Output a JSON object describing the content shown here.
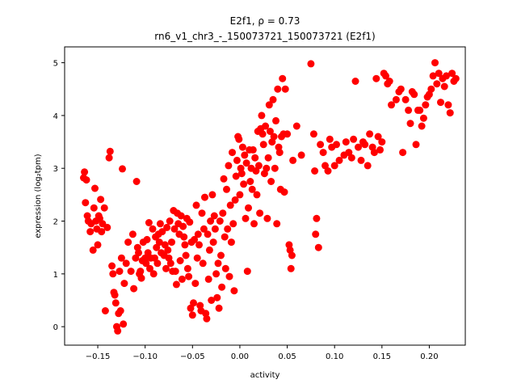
{
  "chart_data": {
    "type": "scatter",
    "title_line1": "E2f1, ρ = 0.73",
    "title_line2": "rn6_v1_chr3_-_150073721_150073721 (E2f1)",
    "xlabel": "activity",
    "ylabel": "expression (log₂tpm)",
    "xlim": [
      -0.185,
      0.238
    ],
    "ylim": [
      -0.35,
      5.3
    ],
    "x_ticks": [
      -0.15,
      -0.1,
      -0.05,
      0.0,
      0.05,
      0.1,
      0.15,
      0.2
    ],
    "x_tick_labels": [
      "−0.15",
      "−0.10",
      "−0.05",
      "0.00",
      "0.05",
      "0.10",
      "0.15",
      "0.20"
    ],
    "y_ticks": [
      0,
      1,
      2,
      3,
      4,
      5
    ],
    "y_tick_labels": [
      "0",
      "1",
      "2",
      "3",
      "4",
      "5"
    ],
    "grid": false,
    "marker_color": "#ff0000",
    "points": [
      [
        -0.165,
        2.82
      ],
      [
        -0.164,
        2.93
      ],
      [
        -0.163,
        2.35
      ],
      [
        -0.162,
        2.78
      ],
      [
        -0.161,
        2.1
      ],
      [
        -0.16,
        2.0
      ],
      [
        -0.158,
        1.8
      ],
      [
        -0.157,
        1.95
      ],
      [
        -0.155,
        1.45
      ],
      [
        -0.154,
        2.25
      ],
      [
        -0.153,
        2.62
      ],
      [
        -0.152,
        2.0
      ],
      [
        -0.151,
        1.85
      ],
      [
        -0.15,
        1.55
      ],
      [
        -0.149,
        2.1
      ],
      [
        -0.148,
        2.05
      ],
      [
        -0.147,
        2.41
      ],
      [
        -0.146,
        1.8
      ],
      [
        -0.145,
        1.95
      ],
      [
        -0.143,
        2.25
      ],
      [
        -0.142,
        0.3
      ],
      [
        -0.14,
        1.88
      ],
      [
        -0.138,
        3.2
      ],
      [
        -0.137,
        3.32
      ],
      [
        -0.135,
        1.15
      ],
      [
        -0.134,
        1.0
      ],
      [
        -0.133,
        0.65
      ],
      [
        -0.132,
        0.6
      ],
      [
        -0.131,
        0.45
      ],
      [
        -0.13,
        0.0
      ],
      [
        -0.129,
        -0.08
      ],
      [
        -0.128,
        0.25
      ],
      [
        -0.127,
        1.05
      ],
      [
        -0.126,
        0.3
      ],
      [
        -0.125,
        1.3
      ],
      [
        -0.124,
        2.99
      ],
      [
        -0.123,
        0.05
      ],
      [
        -0.122,
        0.82
      ],
      [
        -0.12,
        1.2
      ],
      [
        -0.118,
        1.6
      ],
      [
        -0.115,
        1.05
      ],
      [
        -0.113,
        1.75
      ],
      [
        -0.112,
        0.72
      ],
      [
        -0.11,
        1.3
      ],
      [
        -0.109,
        2.75
      ],
      [
        -0.108,
        1.5
      ],
      [
        -0.107,
        1.4
      ],
      [
        -0.106,
        1.0
      ],
      [
        -0.105,
        1.05
      ],
      [
        -0.104,
        0.92
      ],
      [
        -0.103,
        1.25
      ],
      [
        -0.102,
        1.6
      ],
      [
        -0.1,
        1.3
      ],
      [
        -0.099,
        1.2
      ],
      [
        -0.098,
        1.65
      ],
      [
        -0.097,
        1.4
      ],
      [
        -0.096,
        1.97
      ],
      [
        -0.095,
        1.1
      ],
      [
        -0.094,
        1.3
      ],
      [
        -0.092,
        1.85
      ],
      [
        -0.091,
        1.0
      ],
      [
        -0.09,
        1.3
      ],
      [
        -0.089,
        1.7
      ],
      [
        -0.088,
        1.5
      ],
      [
        -0.087,
        1.2
      ],
      [
        -0.086,
        1.75
      ],
      [
        -0.085,
        1.6
      ],
      [
        -0.084,
        1.95
      ],
      [
        -0.083,
        1.4
      ],
      [
        -0.082,
        1.8
      ],
      [
        -0.08,
        1.35
      ],
      [
        -0.079,
        1.55
      ],
      [
        -0.078,
        1.1
      ],
      [
        -0.077,
        1.88
      ],
      [
        -0.076,
        1.45
      ],
      [
        -0.075,
        1.3
      ],
      [
        -0.074,
        2.0
      ],
      [
        -0.073,
        1.2
      ],
      [
        -0.072,
        1.6
      ],
      [
        -0.071,
        1.05
      ],
      [
        -0.07,
        2.2
      ],
      [
        -0.069,
        1.85
      ],
      [
        -0.068,
        1.05
      ],
      [
        -0.067,
        0.8
      ],
      [
        -0.066,
        2.15
      ],
      [
        -0.065,
        1.95
      ],
      [
        -0.064,
        1.75
      ],
      [
        -0.063,
        1.25
      ],
      [
        -0.062,
        2.1
      ],
      [
        -0.061,
        0.9
      ],
      [
        -0.06,
        1.9
      ],
      [
        -0.059,
        1.7
      ],
      [
        -0.058,
        1.55
      ],
      [
        -0.057,
        1.35
      ],
      [
        -0.056,
        2.05
      ],
      [
        -0.055,
        1.1
      ],
      [
        -0.054,
        0.95
      ],
      [
        -0.053,
        1.98
      ],
      [
        -0.052,
        0.35
      ],
      [
        -0.051,
        1.6
      ],
      [
        -0.05,
        0.22
      ],
      [
        -0.049,
        0.45
      ],
      [
        -0.048,
        1.65
      ],
      [
        -0.047,
        0.82
      ],
      [
        -0.046,
        2.3
      ],
      [
        -0.045,
        1.3
      ],
      [
        -0.044,
        1.75
      ],
      [
        -0.043,
        1.55
      ],
      [
        -0.042,
        0.4
      ],
      [
        -0.041,
        0.3
      ],
      [
        -0.04,
        2.15
      ],
      [
        -0.039,
        1.2
      ],
      [
        -0.038,
        1.85
      ],
      [
        -0.037,
        2.45
      ],
      [
        -0.036,
        0.25
      ],
      [
        -0.035,
        0.15
      ],
      [
        -0.034,
        1.75
      ],
      [
        -0.033,
        0.9
      ],
      [
        -0.032,
        1.45
      ],
      [
        -0.031,
        2.0
      ],
      [
        -0.03,
        0.5
      ],
      [
        -0.029,
        2.5
      ],
      [
        -0.028,
        1.6
      ],
      [
        -0.027,
        2.1
      ],
      [
        -0.026,
        1.85
      ],
      [
        -0.025,
        1.0
      ],
      [
        -0.024,
        0.55
      ],
      [
        -0.023,
        1.2
      ],
      [
        -0.022,
        0.35
      ],
      [
        -0.021,
        2.0
      ],
      [
        -0.02,
        1.35
      ],
      [
        -0.019,
        0.75
      ],
      [
        -0.018,
        2.15
      ],
      [
        -0.017,
        2.8
      ],
      [
        -0.016,
        1.7
      ],
      [
        -0.015,
        1.1
      ],
      [
        -0.014,
        2.6
      ],
      [
        -0.013,
        1.85
      ],
      [
        -0.012,
        3.05
      ],
      [
        -0.011,
        0.95
      ],
      [
        -0.01,
        2.3
      ],
      [
        -0.009,
        1.6
      ],
      [
        -0.008,
        3.3
      ],
      [
        -0.007,
        1.95
      ],
      [
        -0.006,
        0.68
      ],
      [
        -0.005,
        2.4
      ],
      [
        -0.004,
        2.85
      ],
      [
        -0.003,
        3.15
      ],
      [
        -0.002,
        3.6
      ],
      [
        -0.001,
        3.55
      ],
      [
        0.0,
        2.5
      ],
      [
        0.001,
        3.0
      ],
      [
        0.002,
        2.9
      ],
      [
        0.003,
        3.4
      ],
      [
        0.004,
        2.7
      ],
      [
        0.005,
        3.25
      ],
      [
        0.006,
        2.05
      ],
      [
        0.007,
        3.1
      ],
      [
        0.008,
        1.05
      ],
      [
        0.009,
        2.25
      ],
      [
        0.01,
        3.35
      ],
      [
        0.011,
        2.75
      ],
      [
        0.012,
        3.0
      ],
      [
        0.013,
        2.6
      ],
      [
        0.014,
        3.35
      ],
      [
        0.015,
        1.95
      ],
      [
        0.016,
        3.2
      ],
      [
        0.017,
        2.95
      ],
      [
        0.018,
        2.5
      ],
      [
        0.019,
        3.7
      ],
      [
        0.02,
        3.05
      ],
      [
        0.021,
        2.15
      ],
      [
        0.022,
        3.75
      ],
      [
        0.023,
        4.0
      ],
      [
        0.024,
        3.65
      ],
      [
        0.025,
        3.45
      ],
      [
        0.026,
        2.9
      ],
      [
        0.027,
        3.8
      ],
      [
        0.028,
        3.0
      ],
      [
        0.029,
        2.05
      ],
      [
        0.03,
        3.2
      ],
      [
        0.031,
        4.2
      ],
      [
        0.032,
        3.7
      ],
      [
        0.033,
        2.75
      ],
      [
        0.034,
        3.5
      ],
      [
        0.035,
        4.3
      ],
      [
        0.036,
        3.6
      ],
      [
        0.037,
        3.0
      ],
      [
        0.038,
        3.9
      ],
      [
        0.039,
        1.95
      ],
      [
        0.04,
        4.5
      ],
      [
        0.041,
        3.4
      ],
      [
        0.042,
        3.3
      ],
      [
        0.043,
        2.6
      ],
      [
        0.044,
        3.6
      ],
      [
        0.045,
        4.7
      ],
      [
        0.046,
        3.65
      ],
      [
        0.047,
        2.55
      ],
      [
        0.048,
        4.5
      ],
      [
        0.05,
        3.65
      ],
      [
        0.052,
        1.55
      ],
      [
        0.053,
        1.45
      ],
      [
        0.054,
        1.1
      ],
      [
        0.055,
        1.35
      ],
      [
        0.056,
        3.15
      ],
      [
        0.06,
        3.8
      ],
      [
        0.065,
        3.25
      ],
      [
        0.075,
        4.98
      ],
      [
        0.078,
        3.65
      ],
      [
        0.079,
        2.95
      ],
      [
        0.08,
        1.75
      ],
      [
        0.081,
        2.05
      ],
      [
        0.083,
        1.5
      ],
      [
        0.085,
        3.45
      ],
      [
        0.088,
        3.3
      ],
      [
        0.09,
        3.05
      ],
      [
        0.093,
        2.95
      ],
      [
        0.095,
        3.55
      ],
      [
        0.097,
        3.4
      ],
      [
        0.1,
        3.05
      ],
      [
        0.102,
        3.45
      ],
      [
        0.105,
        3.15
      ],
      [
        0.11,
        3.25
      ],
      [
        0.112,
        3.5
      ],
      [
        0.115,
        3.3
      ],
      [
        0.118,
        3.2
      ],
      [
        0.12,
        3.55
      ],
      [
        0.122,
        4.65
      ],
      [
        0.125,
        3.4
      ],
      [
        0.128,
        3.15
      ],
      [
        0.13,
        3.5
      ],
      [
        0.132,
        3.45
      ],
      [
        0.135,
        3.05
      ],
      [
        0.137,
        3.65
      ],
      [
        0.14,
        3.4
      ],
      [
        0.142,
        3.3
      ],
      [
        0.144,
        4.7
      ],
      [
        0.146,
        3.6
      ],
      [
        0.148,
        3.35
      ],
      [
        0.15,
        3.5
      ],
      [
        0.152,
        4.8
      ],
      [
        0.154,
        4.75
      ],
      [
        0.156,
        4.6
      ],
      [
        0.158,
        4.65
      ],
      [
        0.16,
        4.2
      ],
      [
        0.165,
        4.3
      ],
      [
        0.168,
        4.45
      ],
      [
        0.17,
        4.5
      ],
      [
        0.172,
        3.3
      ],
      [
        0.175,
        4.3
      ],
      [
        0.178,
        4.1
      ],
      [
        0.18,
        3.85
      ],
      [
        0.182,
        4.45
      ],
      [
        0.184,
        4.4
      ],
      [
        0.186,
        3.45
      ],
      [
        0.188,
        4.1
      ],
      [
        0.19,
        4.1
      ],
      [
        0.192,
        3.8
      ],
      [
        0.194,
        3.95
      ],
      [
        0.196,
        4.2
      ],
      [
        0.198,
        4.35
      ],
      [
        0.2,
        4.4
      ],
      [
        0.202,
        4.5
      ],
      [
        0.204,
        4.75
      ],
      [
        0.206,
        5.0
      ],
      [
        0.208,
        4.6
      ],
      [
        0.21,
        4.8
      ],
      [
        0.212,
        4.25
      ],
      [
        0.214,
        4.7
      ],
      [
        0.216,
        4.55
      ],
      [
        0.218,
        4.75
      ],
      [
        0.22,
        4.2
      ],
      [
        0.222,
        4.05
      ],
      [
        0.224,
        4.8
      ],
      [
        0.226,
        4.65
      ],
      [
        0.228,
        4.7
      ]
    ]
  }
}
